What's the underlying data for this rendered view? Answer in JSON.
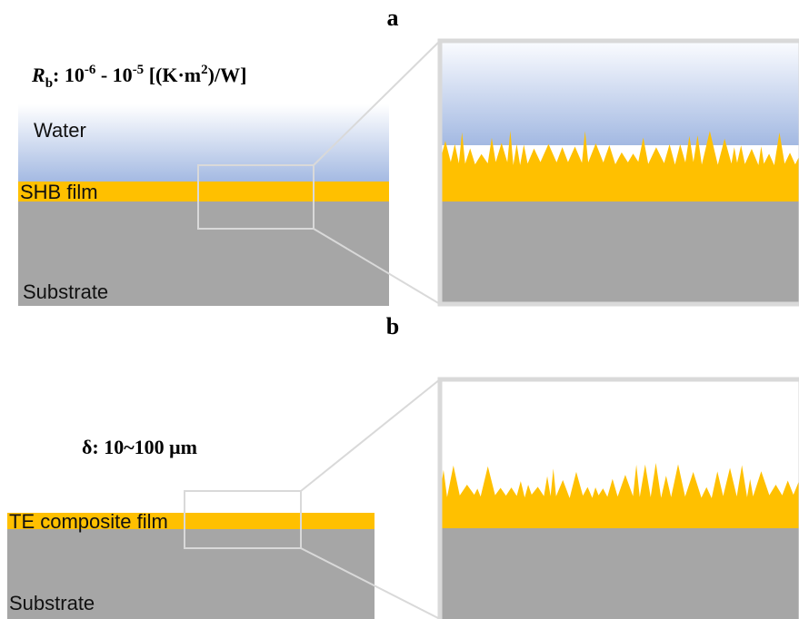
{
  "panel_a": {
    "label": "a",
    "formula": [
      "R",
      "b",
      ": 10",
      "-6",
      " - 10",
      "-5",
      " [(K·m",
      "2",
      ")/W]"
    ],
    "layers": {
      "water": "Water",
      "film": "SHB film",
      "substrate": "Substrate"
    }
  },
  "panel_b": {
    "label": "b",
    "thickness": "δ: 10~100 μm",
    "layers": {
      "film": "TE composite film",
      "substrate": "Substrate"
    }
  }
}
